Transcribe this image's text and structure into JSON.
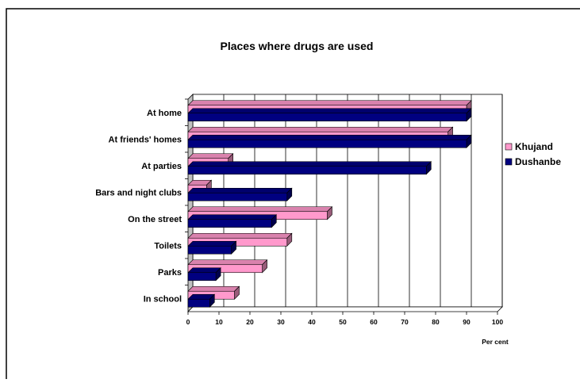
{
  "chart_data": {
    "type": "bar",
    "orientation": "horizontal",
    "title": "Places where drugs are used",
    "xlabel": "Per cent",
    "ylabel": "",
    "xlim": [
      0,
      100
    ],
    "x_ticks": [
      "0",
      "10",
      "20",
      "30",
      "40",
      "50",
      "60",
      "70",
      "80",
      "90",
      "100"
    ],
    "grid": true,
    "legend_position": "right",
    "categories": [
      "At home",
      "At friends' homes",
      "At parties",
      "Bars and night clubs",
      "On the street",
      "Toilets",
      "Parks",
      "In school"
    ],
    "series": [
      {
        "name": "Khujand",
        "color": "#ff99cc",
        "values": [
          90,
          84,
          13,
          6,
          45,
          32,
          24,
          15
        ]
      },
      {
        "name": "Dushanbe",
        "color": "#000080",
        "values": [
          90,
          90,
          77,
          32,
          27,
          14,
          9,
          7
        ]
      }
    ]
  }
}
